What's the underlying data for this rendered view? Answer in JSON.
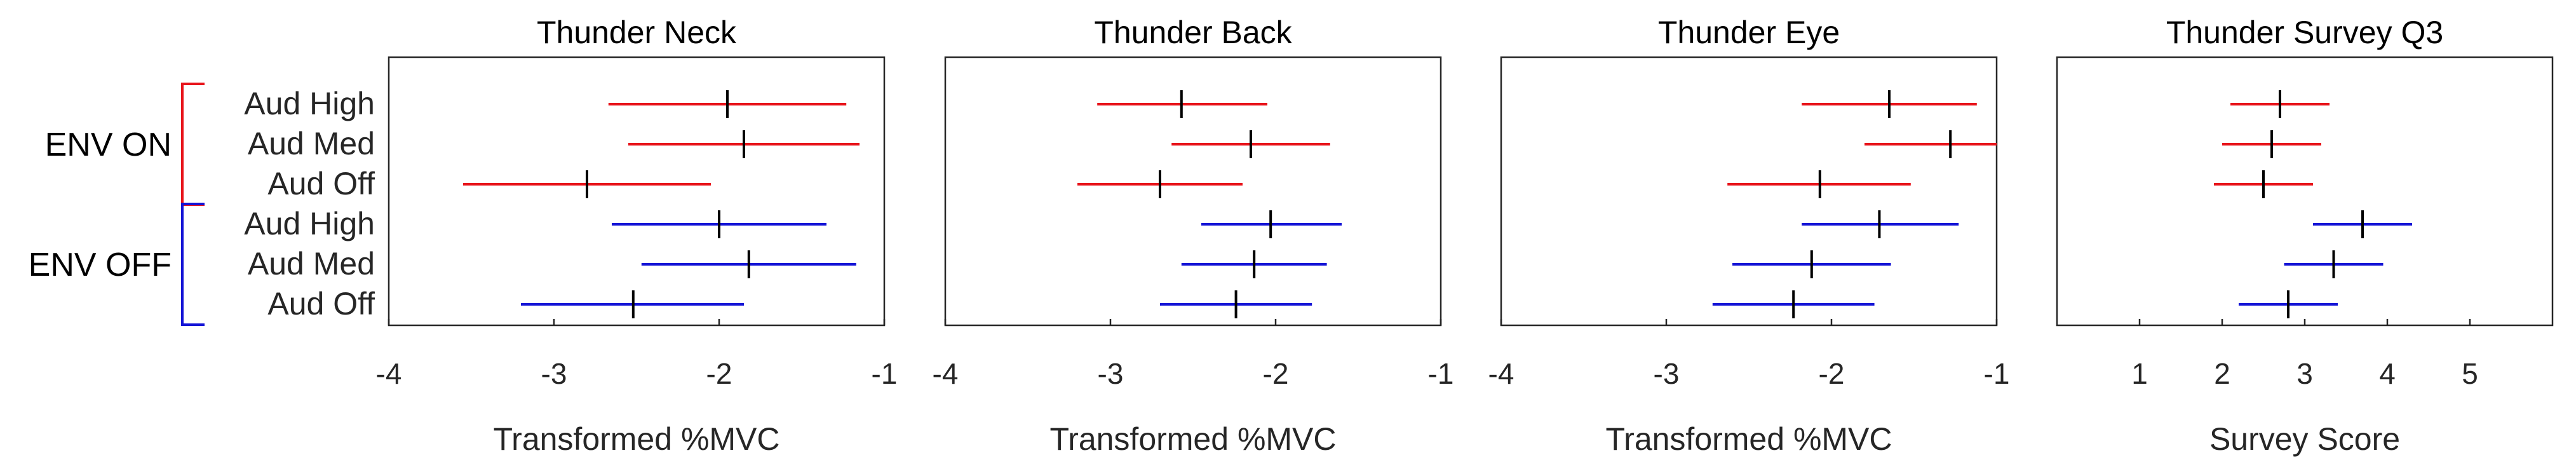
{
  "rows": [
    "Aud High",
    "Aud Med",
    "Aud Off",
    "Aud High",
    "Aud Med",
    "Aud Off"
  ],
  "groups": [
    {
      "label": "ENV ON",
      "color": "#e8141b",
      "rows": [
        0,
        1,
        2
      ]
    },
    {
      "label": "ENV OFF",
      "color": "#1414d6",
      "rows": [
        3,
        4,
        5
      ]
    }
  ],
  "chart_data": [
    {
      "type": "errorbar",
      "title": "Thunder Neck",
      "xlabel": "Transformed %MVC",
      "xlim": [
        -4,
        -1
      ],
      "xticks": [
        -4,
        -3,
        -2,
        -1
      ],
      "xtick_labels": [
        "-4",
        "-3",
        "-2",
        "-1"
      ],
      "points": [
        {
          "mean": -1.95,
          "low": -2.67,
          "high": -1.23
        },
        {
          "mean": -1.85,
          "low": -2.55,
          "high": -1.15
        },
        {
          "mean": -2.8,
          "low": -3.55,
          "high": -2.05
        },
        {
          "mean": -2.0,
          "low": -2.65,
          "high": -1.35
        },
        {
          "mean": -1.82,
          "low": -2.47,
          "high": -1.17
        },
        {
          "mean": -2.52,
          "low": -3.2,
          "high": -1.85
        }
      ]
    },
    {
      "type": "errorbar",
      "title": "Thunder Back",
      "xlabel": "Transformed %MVC",
      "xlim": [
        -4,
        -1
      ],
      "xticks": [
        -4,
        -3,
        -2,
        -1
      ],
      "xtick_labels": [
        "-4",
        "-3",
        "-2",
        "-1"
      ],
      "points": [
        {
          "mean": -2.57,
          "low": -3.08,
          "high": -2.05
        },
        {
          "mean": -2.15,
          "low": -2.63,
          "high": -1.67
        },
        {
          "mean": -2.7,
          "low": -3.2,
          "high": -2.2
        },
        {
          "mean": -2.03,
          "low": -2.45,
          "high": -1.6
        },
        {
          "mean": -2.13,
          "low": -2.57,
          "high": -1.69
        },
        {
          "mean": -2.24,
          "low": -2.7,
          "high": -1.78
        }
      ]
    },
    {
      "type": "errorbar",
      "title": "Thunder Eye",
      "xlabel": "Transformed %MVC",
      "xlim": [
        -4,
        -1
      ],
      "xticks": [
        -4,
        -3,
        -2,
        -1
      ],
      "xtick_labels": [
        "-4",
        "-3",
        "-2",
        "-1"
      ],
      "points": [
        {
          "mean": -1.65,
          "low": -2.18,
          "high": -1.12
        },
        {
          "mean": -1.28,
          "low": -1.8,
          "high": -1.0
        },
        {
          "mean": -2.07,
          "low": -2.63,
          "high": -1.52
        },
        {
          "mean": -1.71,
          "low": -2.18,
          "high": -1.23
        },
        {
          "mean": -2.12,
          "low": -2.6,
          "high": -1.64
        },
        {
          "mean": -2.23,
          "low": -2.72,
          "high": -1.74
        }
      ]
    },
    {
      "type": "errorbar",
      "title": "Thunder Survey Q3",
      "xlabel": "Survey Score",
      "xlim": [
        0,
        6
      ],
      "xticks": [
        1,
        2,
        3,
        4,
        5
      ],
      "xtick_labels": [
        "1",
        "2",
        "3",
        "4",
        "5"
      ],
      "points": [
        {
          "mean": 2.7,
          "low": 2.1,
          "high": 3.3
        },
        {
          "mean": 2.6,
          "low": 2.0,
          "high": 3.2
        },
        {
          "mean": 2.5,
          "low": 1.9,
          "high": 3.1
        },
        {
          "mean": 3.7,
          "low": 3.1,
          "high": 4.3
        },
        {
          "mean": 3.35,
          "low": 2.75,
          "high": 3.95
        },
        {
          "mean": 2.8,
          "low": 2.2,
          "high": 3.4
        }
      ]
    }
  ]
}
